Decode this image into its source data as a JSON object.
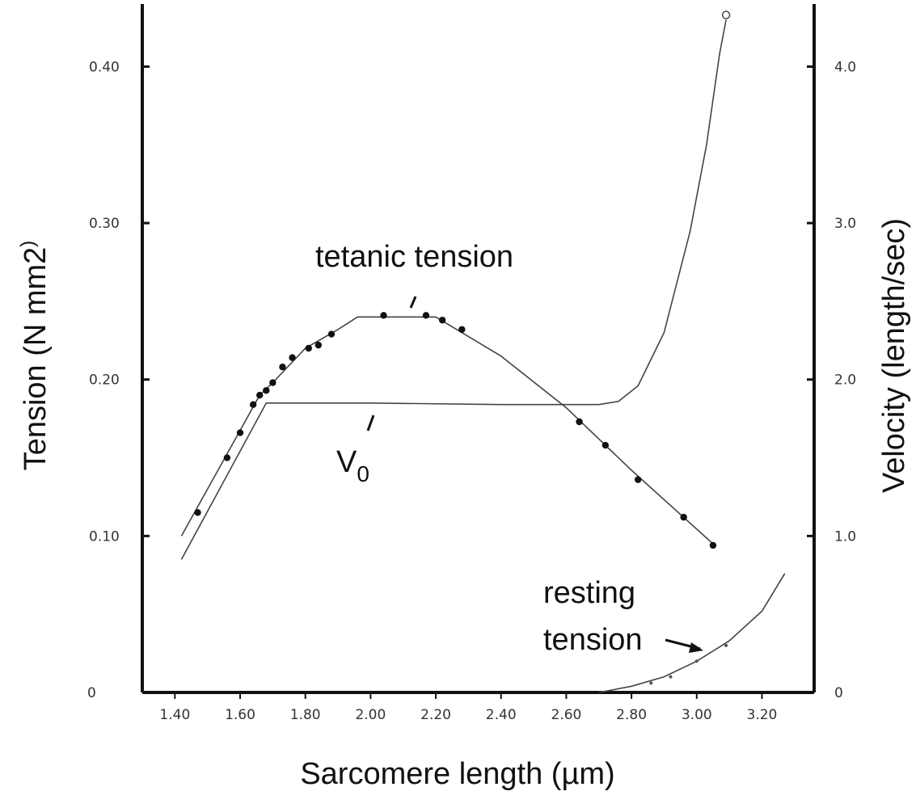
{
  "chart_data": {
    "type": "line",
    "title": "",
    "xlabel": "Sarcomere length (µm)",
    "ylabel_left": "Tension (N mm2)",
    "ylabel_right": "Velocity (length/sec)",
    "xlim": [
      1.3,
      3.36
    ],
    "ylim_left": [
      0,
      0.44
    ],
    "ylim_right": [
      0,
      4.4
    ],
    "x_ticks": [
      "1.40",
      "1.60",
      "1.80",
      "2.00",
      "2.20",
      "2.40",
      "2.60",
      "2.80",
      "3.00",
      "3.20"
    ],
    "y_left_ticks": [
      "0",
      "0.10",
      "0.20",
      "0.30",
      "0.40"
    ],
    "y_right_ticks": [
      "0",
      "1.0",
      "2.0",
      "3.0",
      "4.0"
    ],
    "grid": false,
    "series": [
      {
        "name": "tetanic tension",
        "axis": "left",
        "line": [
          [
            1.42,
            0.1
          ],
          [
            1.66,
            0.19
          ],
          [
            1.7,
            0.198
          ],
          [
            1.8,
            0.22
          ],
          [
            1.9,
            0.232
          ],
          [
            1.96,
            0.24
          ],
          [
            2.2,
            0.24
          ],
          [
            2.4,
            0.215
          ],
          [
            2.6,
            0.182
          ],
          [
            2.8,
            0.142
          ],
          [
            3.05,
            0.095
          ]
        ],
        "points": [
          [
            1.47,
            0.115
          ],
          [
            1.56,
            0.15
          ],
          [
            1.6,
            0.166
          ],
          [
            1.64,
            0.184
          ],
          [
            1.66,
            0.19
          ],
          [
            1.68,
            0.193
          ],
          [
            1.7,
            0.198
          ],
          [
            1.73,
            0.208
          ],
          [
            1.76,
            0.214
          ],
          [
            1.81,
            0.22
          ],
          [
            1.84,
            0.222
          ],
          [
            1.88,
            0.229
          ],
          [
            2.04,
            0.241
          ],
          [
            2.17,
            0.241
          ],
          [
            2.22,
            0.238
          ],
          [
            2.28,
            0.232
          ],
          [
            2.64,
            0.173
          ],
          [
            2.72,
            0.158
          ],
          [
            2.82,
            0.136
          ],
          [
            2.96,
            0.112
          ],
          [
            3.05,
            0.094
          ]
        ]
      },
      {
        "name": "V0",
        "axis": "right",
        "line": [
          [
            1.42,
            0.85
          ],
          [
            1.68,
            1.85
          ],
          [
            2.0,
            1.85
          ],
          [
            2.4,
            1.84
          ],
          [
            2.7,
            1.84
          ],
          [
            2.76,
            1.86
          ],
          [
            2.82,
            1.96
          ],
          [
            2.9,
            2.3
          ],
          [
            2.98,
            2.95
          ],
          [
            3.03,
            3.5
          ],
          [
            3.07,
            4.08
          ],
          [
            3.09,
            4.3
          ]
        ],
        "points": [
          [
            3.09,
            4.33
          ]
        ]
      },
      {
        "name": "resting tension",
        "axis": "left",
        "line": [
          [
            2.7,
            0.0
          ],
          [
            2.8,
            0.004
          ],
          [
            2.9,
            0.01
          ],
          [
            3.0,
            0.02
          ],
          [
            3.1,
            0.033
          ],
          [
            3.2,
            0.052
          ],
          [
            3.27,
            0.076
          ]
        ],
        "points": [
          [
            2.86,
            0.006
          ],
          [
            2.92,
            0.01
          ],
          [
            3.0,
            0.02
          ],
          [
            3.09,
            0.03
          ]
        ]
      }
    ],
    "annotations": {
      "tetanic": "tetanic tension",
      "v0_main": "V",
      "v0_sub": "0",
      "resting_line1": "resting",
      "resting_line2": "tension"
    }
  }
}
